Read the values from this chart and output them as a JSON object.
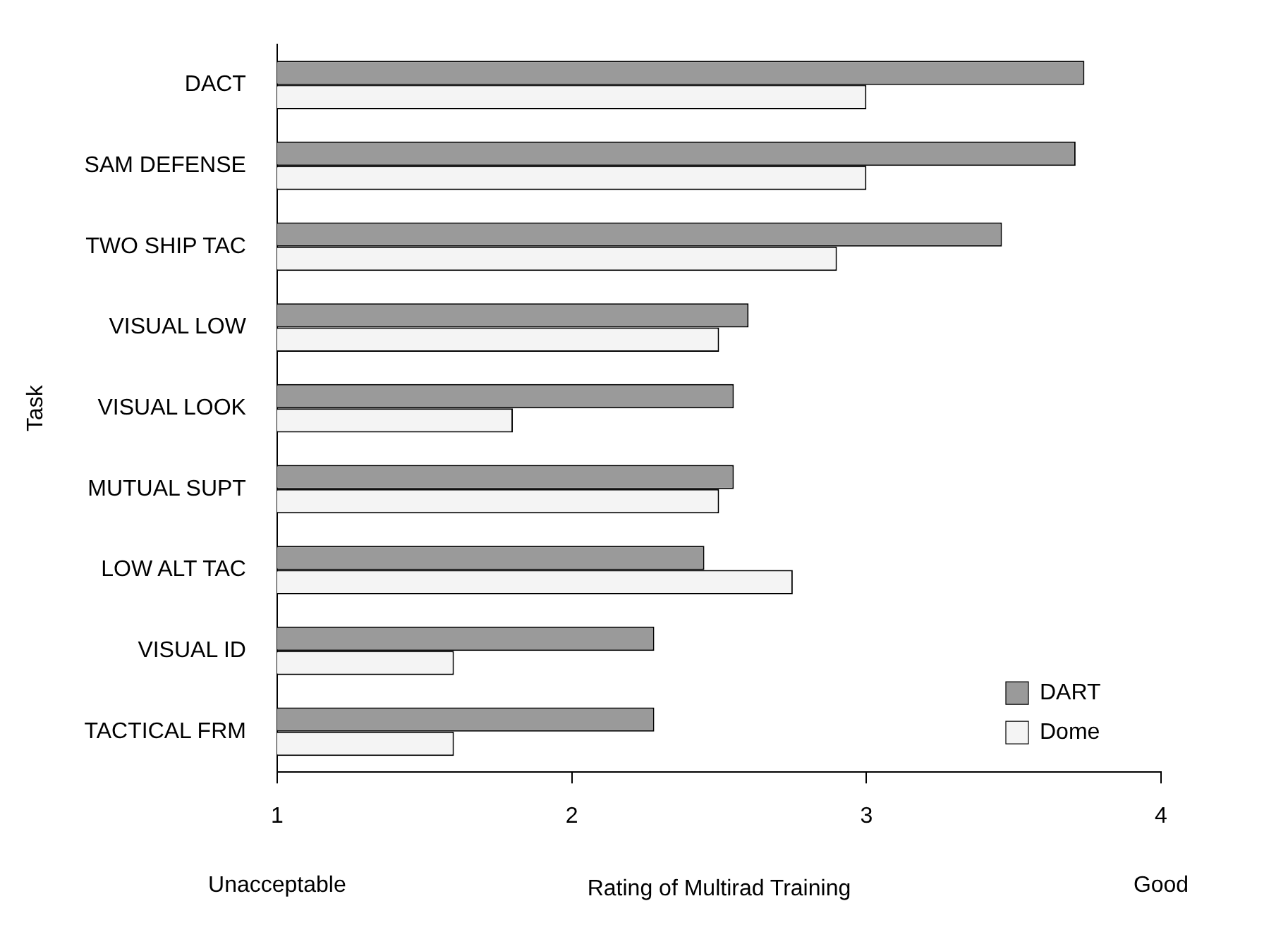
{
  "chart_data": {
    "type": "bar",
    "orientation": "horizontal",
    "xlabel": "Rating of Multirad Training",
    "ylabel": "Task",
    "annotations": [
      "Unacceptable",
      "Good"
    ],
    "categories": [
      "DACT",
      "SAM DEFENSE",
      "TWO SHIP TAC",
      "VISUAL LOW",
      "VISUAL LOOK",
      "MUTUAL SUPT",
      "LOW ALT TAC",
      "VISUAL ID",
      "TACTICAL FRM"
    ],
    "series": [
      {
        "name": "DART",
        "color": "#9a9a9a",
        "values": [
          3.74,
          3.71,
          3.46,
          2.6,
          2.55,
          2.55,
          2.45,
          2.28,
          2.28
        ]
      },
      {
        "name": "Dome",
        "color": "#f4f4f4",
        "values": [
          3.0,
          3.0,
          2.9,
          2.5,
          1.8,
          2.5,
          2.75,
          1.6,
          1.6
        ]
      }
    ],
    "xlim": [
      1,
      4
    ],
    "xticks": [
      1,
      2,
      3,
      4
    ],
    "grid": false,
    "legend": "bottom right"
  }
}
